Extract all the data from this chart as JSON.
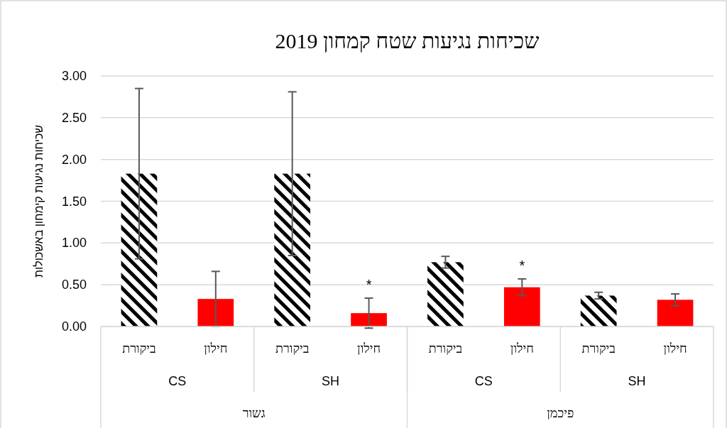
{
  "chart_data": {
    "type": "bar",
    "title": "שכיחות נגיעות שטח קמחון 2019",
    "ylabel": "שכיחות נגיעות קימחון באשכולות",
    "categories": [
      "ביקורת",
      "חילון",
      "ביקורת",
      "חילון",
      "ביקורת",
      "חילון",
      "ביקורת",
      "חילון"
    ],
    "values": [
      1.83,
      0.33,
      1.83,
      0.16,
      0.77,
      0.47,
      0.37,
      0.32
    ],
    "errors": [
      1.02,
      0.33,
      0.98,
      0.18,
      0.07,
      0.1,
      0.04,
      0.07
    ],
    "value_labels": [
      null,
      null,
      null,
      "*",
      null,
      "*",
      null,
      null
    ],
    "colors": [
      "#000000",
      "#ff0000",
      "#000000",
      "#ff0000",
      "#000000",
      "#ff0000",
      "#000000",
      "#ff0000"
    ],
    "annotations": [
      "CS",
      "SH",
      "CS",
      "SH",
      "גשור",
      "פיכמן"
    ],
    "ylim": [
      0,
      3
    ],
    "yticks": [
      {
        "value": 0,
        "label": "0.00"
      },
      {
        "value": 0.5,
        "label": "0.50"
      },
      {
        "value": 1,
        "label": "1.00"
      },
      {
        "value": 1.5,
        "label": "1.50"
      },
      {
        "value": 2,
        "label": "2.00"
      },
      {
        "value": 2.5,
        "label": "2.50"
      },
      {
        "value": 3,
        "label": "3.00"
      }
    ],
    "grid": "y"
  }
}
